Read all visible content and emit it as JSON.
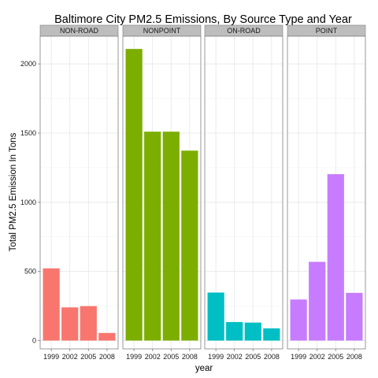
{
  "chart_data": {
    "type": "bar",
    "title": "Baltimore City PM2.5 Emissions, By Source Type and Year",
    "xlabel": "year",
    "ylabel": "Total PM2.5 Emission In Tons",
    "categories": [
      "1999",
      "2002",
      "2005",
      "2008"
    ],
    "ylim": [
      -60,
      2200
    ],
    "yticks": [
      0,
      500,
      1000,
      1500,
      2000
    ],
    "grid": true,
    "legend": "none",
    "facets": [
      {
        "name": "NON-ROAD",
        "color": "#f8766d",
        "values": [
          522,
          240,
          249,
          55
        ]
      },
      {
        "name": "NONPOINT",
        "color": "#7cae00",
        "values": [
          2108,
          1510,
          1510,
          1373
        ]
      },
      {
        "name": "ON-ROAD",
        "color": "#00bfc4",
        "values": [
          347,
          134,
          130,
          88
        ]
      },
      {
        "name": "POINT",
        "color": "#c77cff",
        "values": [
          297,
          569,
          1203,
          345
        ]
      }
    ]
  }
}
